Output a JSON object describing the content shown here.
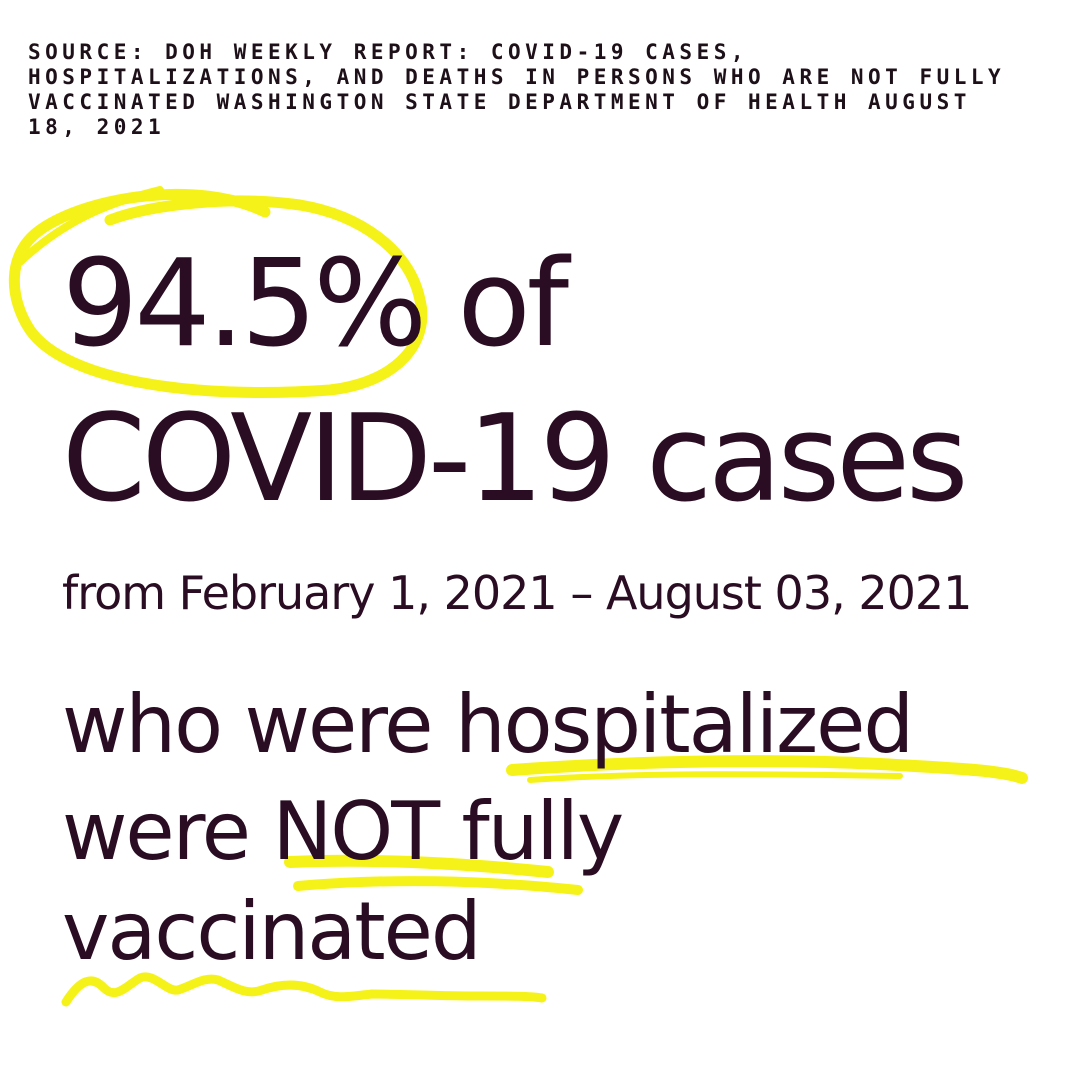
{
  "source": "SOURCE: DOH WEEKLY REPORT: COVID-19 CASES, HOSPITALIZATIONS, AND DEATHS IN PERSONS WHO ARE NOT FULLY VACCINATED WASHINGTON STATE DEPARTMENT OF HEALTH AUGUST 18, 2021",
  "headline": {
    "percent": "94.5%",
    "of": " of",
    "line2": "COVID-19 cases"
  },
  "date_range": "from February 1, 2021 – August 03, 2021",
  "statement": {
    "who_were": "who were ",
    "hospitalized": "hospitalized",
    "were": "were ",
    "not": "NOT",
    "fully": " fully",
    "vaccinated": "vaccinated"
  },
  "colors": {
    "text": "#2a0d22",
    "highlight": "#f5f219"
  }
}
